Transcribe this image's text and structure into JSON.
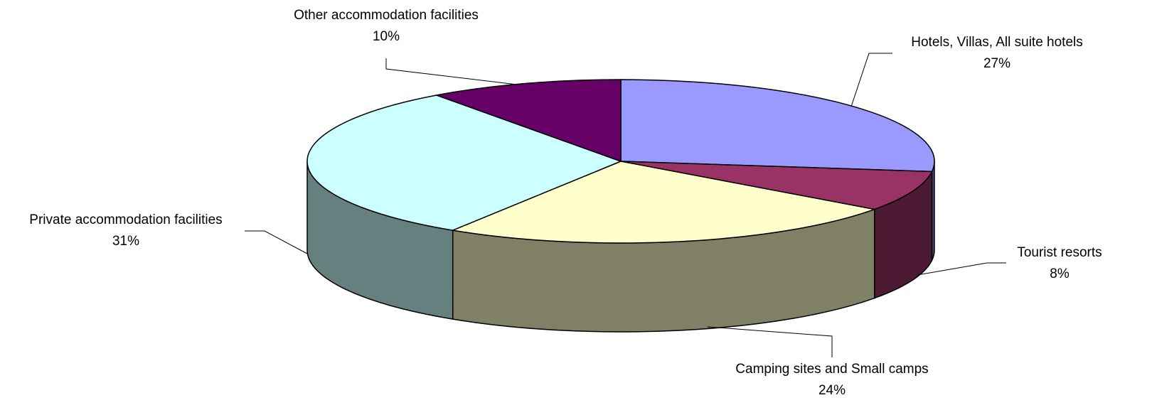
{
  "chart_data": {
    "type": "pie3d",
    "categories": [
      "Hotels, Villas, All suite hotels",
      "Tourist resorts",
      "Camping sites and Small camps",
      "Private accommodation facilities",
      "Other accommodation facilities"
    ],
    "values": [
      27,
      8,
      24,
      31,
      10
    ],
    "value_labels": [
      "27%",
      "8%",
      "24%",
      "31%",
      "10%"
    ],
    "colors": [
      "#9999ff",
      "#993366",
      "#ffffcc",
      "#ccffff",
      "#660066"
    ]
  }
}
